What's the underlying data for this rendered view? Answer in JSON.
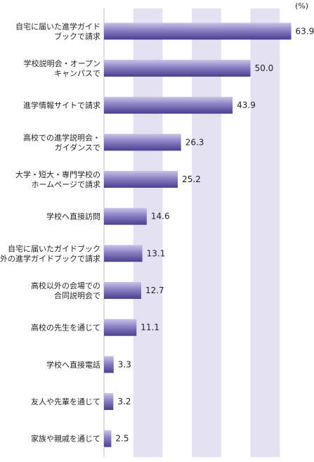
{
  "unit_label": "(%)",
  "chart_data": {
    "type": "bar",
    "orientation": "horizontal",
    "unit": "(%)",
    "xlim": [
      0,
      70
    ],
    "grid": "alternating vertical bands every 10",
    "colors": {
      "bar_top": "#c9c4e6",
      "bar_bottom": "#4a3f8f",
      "band": "#e4e1f3"
    },
    "categories": [
      [
        "自宅に届いた進学ガイド",
        "ブックで請求"
      ],
      [
        "学校説明会・オープン",
        "キャンパスで"
      ],
      [
        "進学情報サイトで請求"
      ],
      [
        "高校での進学説明会・",
        "ガイダンスで"
      ],
      [
        "大学・短大・専門学校の",
        "ホームページで請求"
      ],
      [
        "学校へ直接訪問"
      ],
      [
        "自宅に届いたガイドブック",
        "以外の進学ガイドブックで請求"
      ],
      [
        "高校以外の会場での",
        "合同説明会で"
      ],
      [
        "高校の先生を通じて"
      ],
      [
        "学校へ直接電話"
      ],
      [
        "友人や先輩を通じて"
      ],
      [
        "家族や親戚を通じて"
      ]
    ],
    "values": [
      63.9,
      50.0,
      43.9,
      26.3,
      25.2,
      14.6,
      13.1,
      12.7,
      11.1,
      3.3,
      3.2,
      2.5
    ],
    "value_labels": [
      "63.9",
      "50.0",
      "43.9",
      "26.3",
      "25.2",
      "14.6",
      "13.1",
      "12.7",
      "11.1",
      "3.3",
      "3.2",
      "2.5"
    ]
  }
}
